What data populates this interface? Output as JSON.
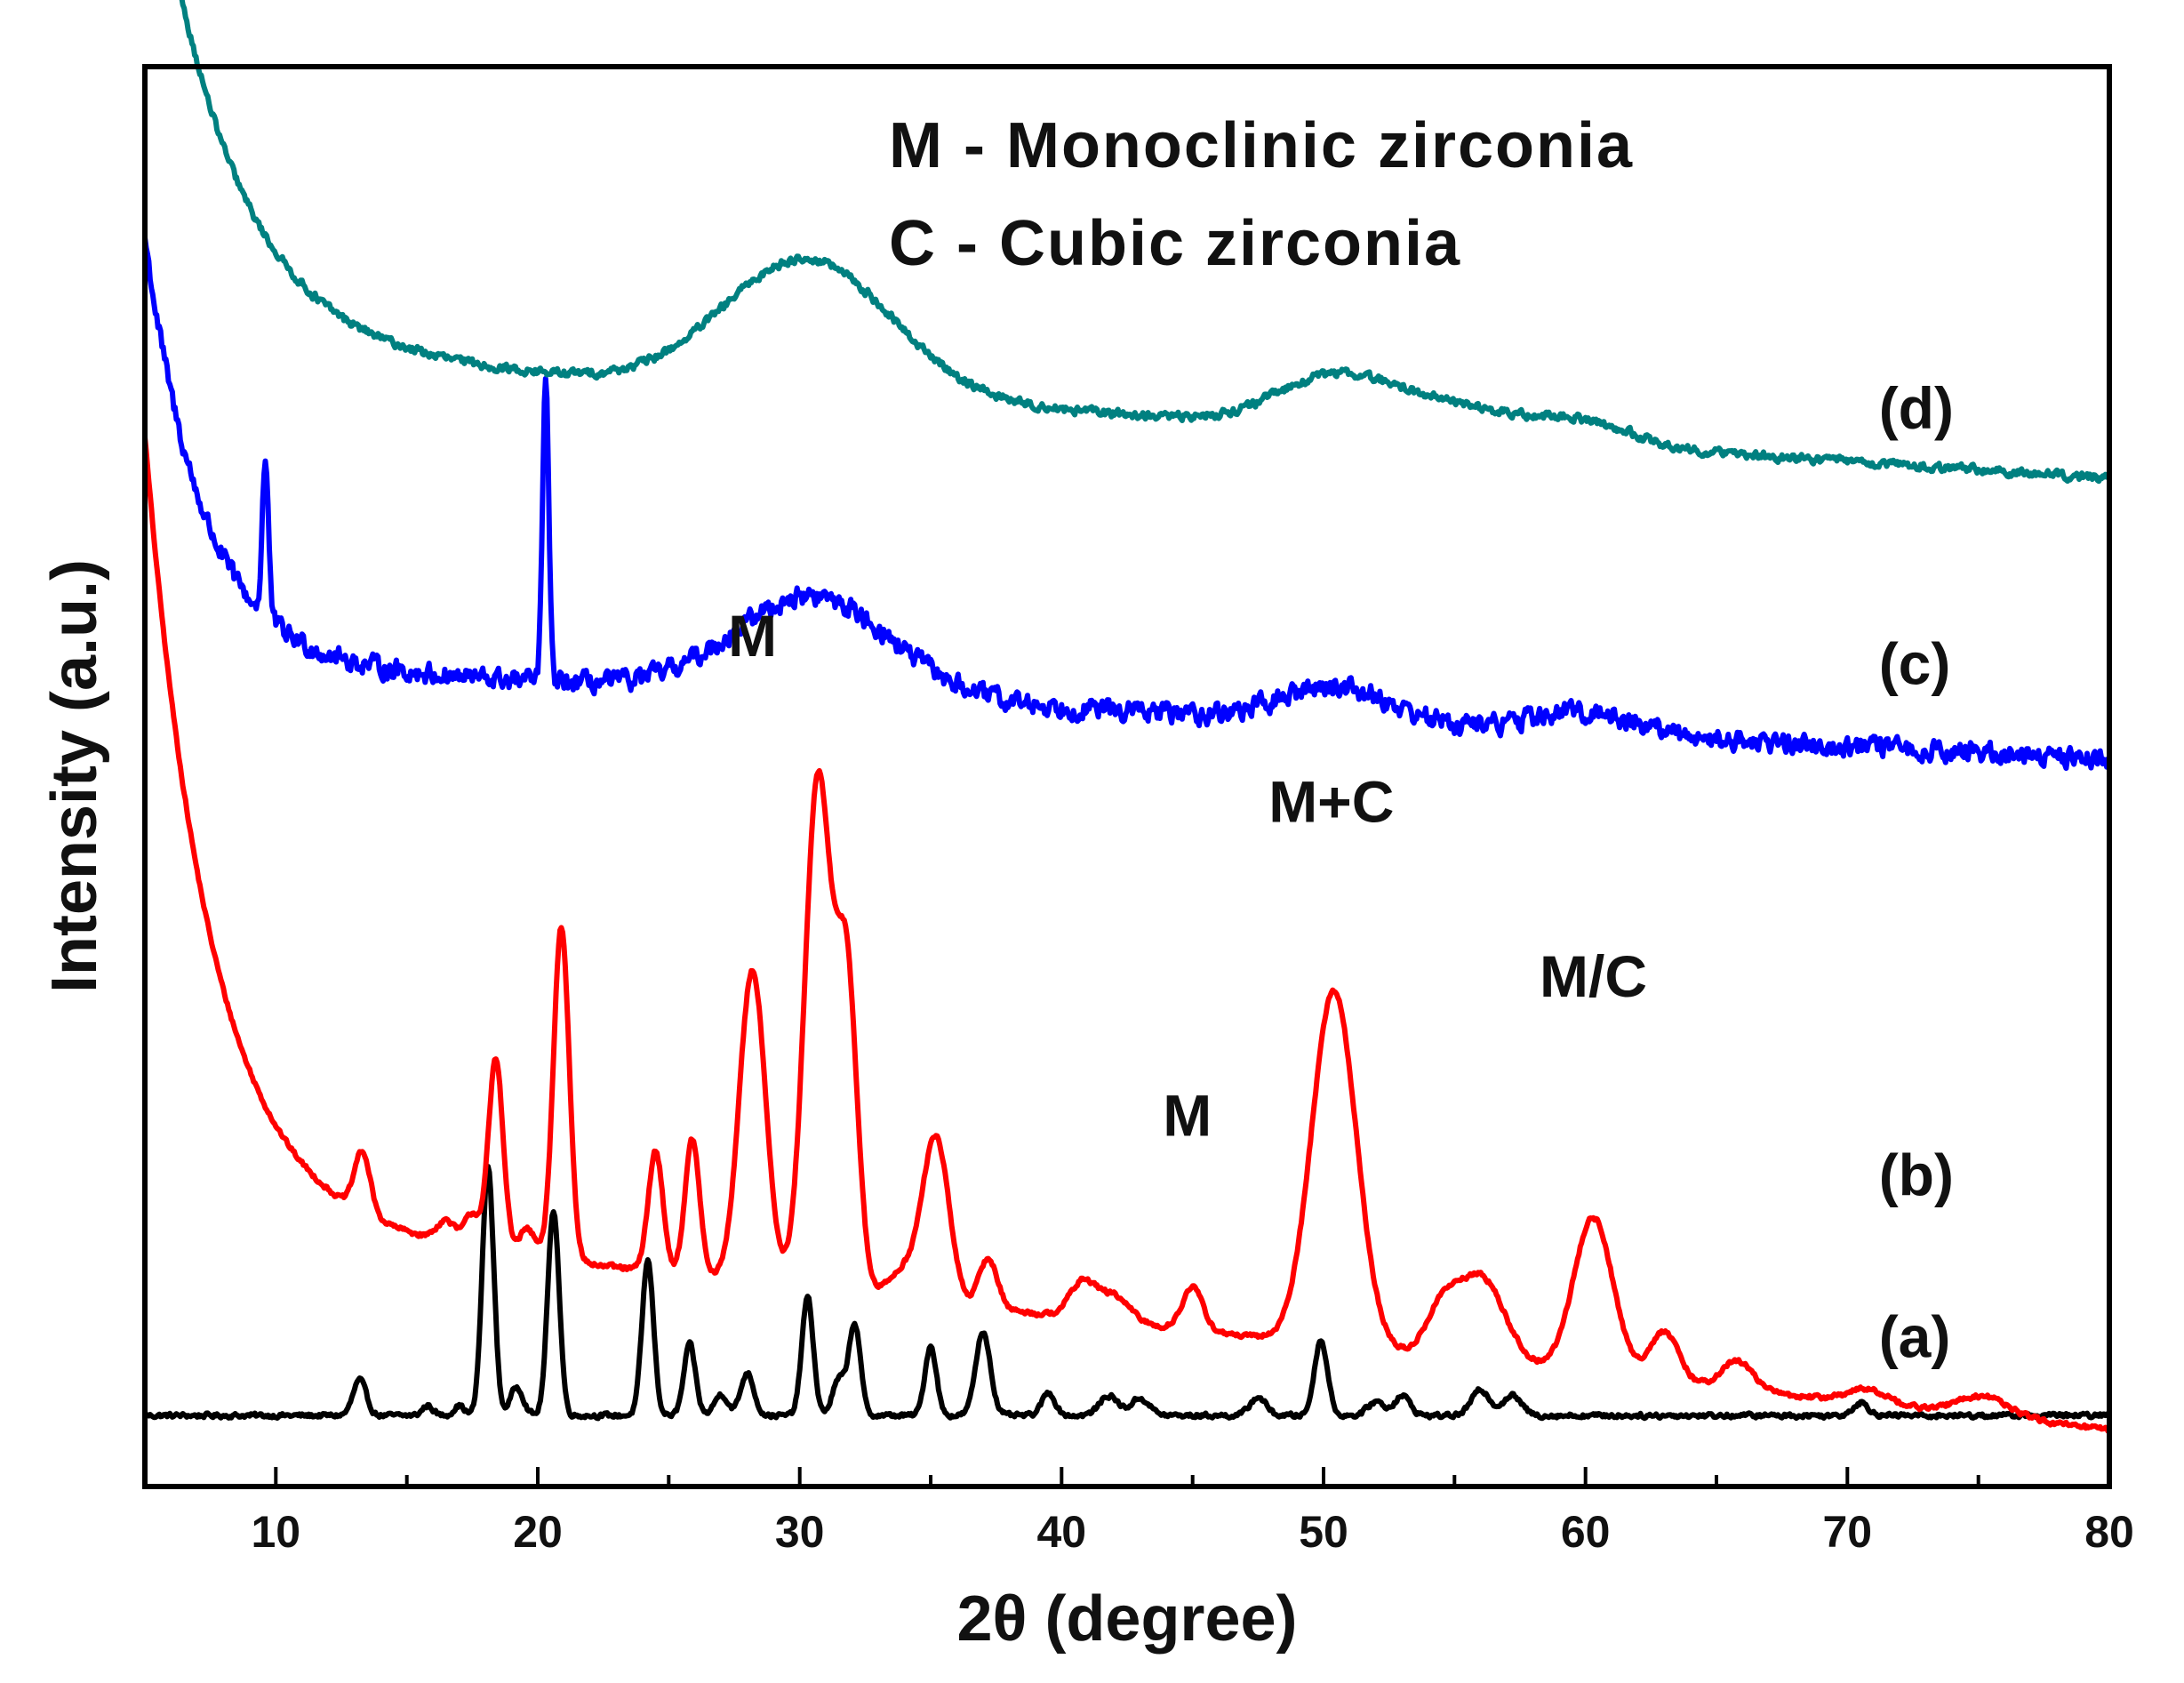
{
  "chart_data": {
    "type": "line",
    "title": "",
    "xlabel": "2θ (degree)",
    "ylabel": "Intensity (a.u.)",
    "xlim": [
      5,
      80
    ],
    "ylim": [
      0,
      100
    ],
    "xticks": [
      10,
      20,
      30,
      40,
      50,
      60,
      70,
      80
    ],
    "legend_lines": [
      "M - Monoclinic zirconia",
      "C - Cubic zirconia"
    ],
    "colors": {
      "a": "#000000",
      "b": "#ff0000",
      "c": "#0000ff",
      "d": "#008080"
    },
    "annotations": [
      {
        "text": "M",
        "x": 28.2,
        "y": 58.5
      },
      {
        "text": "M",
        "x": 44.8,
        "y": 24.7
      },
      {
        "text": "M+C",
        "x": 50.3,
        "y": 46.8
      },
      {
        "text": "M/C",
        "x": 60.3,
        "y": 34.5
      }
    ],
    "series": [
      {
        "name": "(a)",
        "label": "(a)",
        "color": "#000000",
        "baseline": 5.0,
        "baseline_slope": 0.0,
        "noise": 0.25,
        "decay": {
          "amp": 0,
          "tau": 1
        },
        "peaks": [
          [
            13.2,
            2.5,
            0.25
          ],
          [
            15.8,
            0.7,
            0.2
          ],
          [
            17.0,
            0.7,
            0.2
          ],
          [
            18.1,
            17.5,
            0.22
          ],
          [
            19.2,
            2.0,
            0.25
          ],
          [
            20.6,
            14.5,
            0.22
          ],
          [
            24.2,
            10.9,
            0.22
          ],
          [
            25.8,
            5.0,
            0.22
          ],
          [
            27.0,
            1.5,
            0.25
          ],
          [
            28.0,
            3.0,
            0.25
          ],
          [
            30.3,
            8.3,
            0.22
          ],
          [
            31.5,
            2.5,
            0.25
          ],
          [
            32.1,
            6.4,
            0.22
          ],
          [
            35.0,
            4.9,
            0.22
          ],
          [
            37.0,
            5.9,
            0.28
          ],
          [
            39.5,
            1.6,
            0.25
          ],
          [
            41.8,
            1.4,
            0.35
          ],
          [
            43.0,
            1.2,
            0.35
          ],
          [
            47.5,
            1.3,
            0.3
          ],
          [
            49.9,
            5.3,
            0.25
          ],
          [
            52.0,
            1.0,
            0.3
          ],
          [
            53.0,
            1.4,
            0.3
          ],
          [
            56.0,
            1.8,
            0.35
          ],
          [
            57.2,
            1.4,
            0.35
          ],
          [
            70.5,
            0.9,
            0.3
          ]
        ],
        "label_x": 71.2,
        "label_y": 9.1
      },
      {
        "name": "(b)",
        "label": "(b)",
        "color": "#ff0000",
        "baseline": 19.0,
        "baseline_slope": -0.2,
        "noise": 0.25,
        "decay": {
          "amp": 55,
          "tau": 2.5
        },
        "peaks": [
          [
            13.3,
            4.3,
            0.3
          ],
          [
            16.5,
            1.5,
            0.35
          ],
          [
            17.5,
            2.3,
            0.3
          ],
          [
            18.4,
            13.5,
            0.28
          ],
          [
            19.6,
            1.9,
            0.3
          ],
          [
            20.9,
            23.5,
            0.3
          ],
          [
            24.5,
            8.5,
            0.28
          ],
          [
            25.9,
            9.6,
            0.28
          ],
          [
            28.2,
            22.0,
            0.5
          ],
          [
            30.7,
            36.0,
            0.5
          ],
          [
            31.8,
            22.0,
            0.4
          ],
          [
            34.0,
            2.0,
            0.6
          ],
          [
            35.2,
            11.5,
            0.5
          ],
          [
            37.2,
            3.5,
            0.35
          ],
          [
            40.8,
            2.5,
            0.5
          ],
          [
            42.0,
            1.8,
            0.6
          ],
          [
            45.0,
            3.0,
            0.4
          ],
          [
            50.4,
            25.0,
            0.85
          ],
          [
            54.5,
            3.0,
            0.6
          ],
          [
            56.0,
            6.0,
            0.9
          ],
          [
            60.3,
            11.0,
            0.75
          ],
          [
            63.0,
            3.5,
            0.55
          ],
          [
            65.8,
            2.0,
            0.6
          ],
          [
            70.8,
            1.0,
            0.8
          ],
          [
            75.2,
            1.4,
            1.0
          ]
        ],
        "label_x": 71.2,
        "label_y": 20.5
      },
      {
        "name": "(c)",
        "label": "(c)",
        "color": "#0000ff",
        "baseline": 58.0,
        "baseline_slope": -0.09,
        "noise": 1.1,
        "decay": {
          "amp": 30,
          "tau": 2.2
        },
        "peaks": [
          [
            9.6,
            11.0,
            0.12
          ],
          [
            20.3,
            21.0,
            0.12
          ],
          [
            30.5,
            7.0,
            3.0
          ],
          [
            50.5,
            2.5,
            2.0
          ],
          [
            60.0,
            1.5,
            2.0
          ]
        ],
        "label_x": 71.2,
        "label_y": 56.5
      },
      {
        "name": "(d)",
        "label": "(d)",
        "color": "#008080",
        "baseline": 80.0,
        "baseline_slope": -0.12,
        "noise": 0.45,
        "decay": {
          "amp": 40,
          "tau": 3.0
        },
        "peaks": [
          [
            30.3,
            9.5,
            3.2
          ],
          [
            50.4,
            3.5,
            2.2
          ],
          [
            55.0,
            2.0,
            2.5
          ],
          [
            60.0,
            1.5,
            1.8
          ]
        ],
        "label_x": 71.2,
        "label_y": 74.5
      }
    ]
  }
}
